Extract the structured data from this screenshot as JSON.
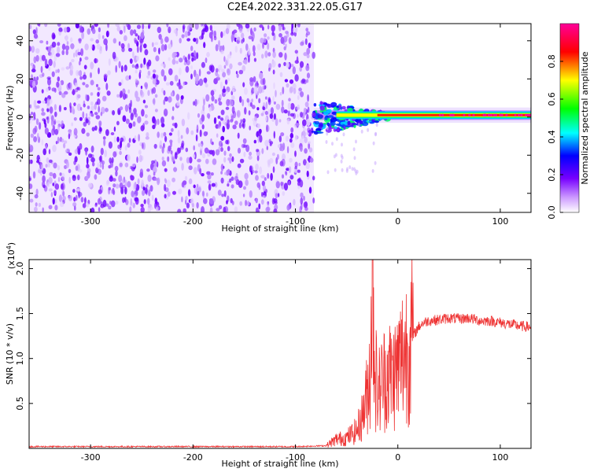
{
  "title": "C2E4.2022.331.22.05.G17",
  "chart_data": [
    {
      "type": "heatmap",
      "xlabel": "Height of straight line (km)",
      "ylabel": "Frequency (Hz)",
      "xlim": [
        -360,
        130
      ],
      "ylim": [
        -50,
        49
      ],
      "x_ticks": [
        -300,
        -200,
        -100,
        0,
        100
      ],
      "y_ticks": [
        -40,
        -20,
        0,
        20,
        40
      ],
      "x_tick_labels": [
        "-300",
        "-200",
        "-100",
        "0",
        "100"
      ],
      "y_tick_labels": [
        "-40",
        "-20",
        "0",
        "20",
        "40"
      ],
      "noise_region_x": [
        -360,
        -82
      ],
      "signal_region_x": [
        -82,
        130
      ],
      "signal_center_frequency_hz": 1,
      "colorbar": {
        "label": "Normalized spectral amplitude",
        "range": [
          0.0,
          1.0
        ],
        "ticks": [
          0.0,
          0.2,
          0.4,
          0.6,
          0.8
        ],
        "tick_labels": [
          "0.0",
          "0.2",
          "0.4",
          "0.6",
          "0.8"
        ],
        "colormap": [
          "#ffffff",
          "#9933ff",
          "#0000ff",
          "#00ffff",
          "#00ff00",
          "#ffff00",
          "#ff0000",
          "#ff00aa"
        ]
      }
    },
    {
      "type": "line",
      "xlabel": "Height of straight line (km)",
      "ylabel": "SNR (10 * v/v)",
      "scale_label": "(x10",
      "scale_exp": "4",
      "scale_close": ")",
      "xlim": [
        -360,
        130
      ],
      "ylim": [
        0,
        2.1
      ],
      "x_ticks": [
        -300,
        -200,
        -100,
        0,
        100
      ],
      "y_ticks": [
        0.5,
        1.0,
        1.5,
        2.0
      ],
      "x_tick_labels": [
        "-300",
        "-200",
        "-100",
        "0",
        "100"
      ],
      "y_tick_labels": [
        "0.5",
        "1.0",
        "1.5",
        "2.0"
      ],
      "line_color": "#ee3333",
      "series": [
        {
          "x": [
            -360,
            -300,
            -200,
            -100,
            -70,
            -60,
            -50,
            -40,
            -35,
            -30,
            -27,
            -25,
            -22,
            -20,
            -15,
            -10,
            -5,
            0,
            5,
            10,
            15,
            20,
            25,
            30,
            40,
            50,
            60,
            70,
            80,
            90,
            100,
            110,
            120,
            130
          ],
          "values": [
            0.02,
            0.02,
            0.02,
            0.02,
            0.03,
            0.1,
            0.12,
            0.2,
            0.35,
            0.6,
            0.9,
            2.1,
            0.9,
            0.6,
            0.75,
            0.85,
            0.8,
            0.9,
            1.05,
            1.15,
            1.25,
            1.35,
            1.4,
            1.42,
            1.43,
            1.45,
            1.44,
            1.45,
            1.42,
            1.42,
            1.4,
            1.38,
            1.36,
            1.35
          ]
        }
      ]
    }
  ]
}
